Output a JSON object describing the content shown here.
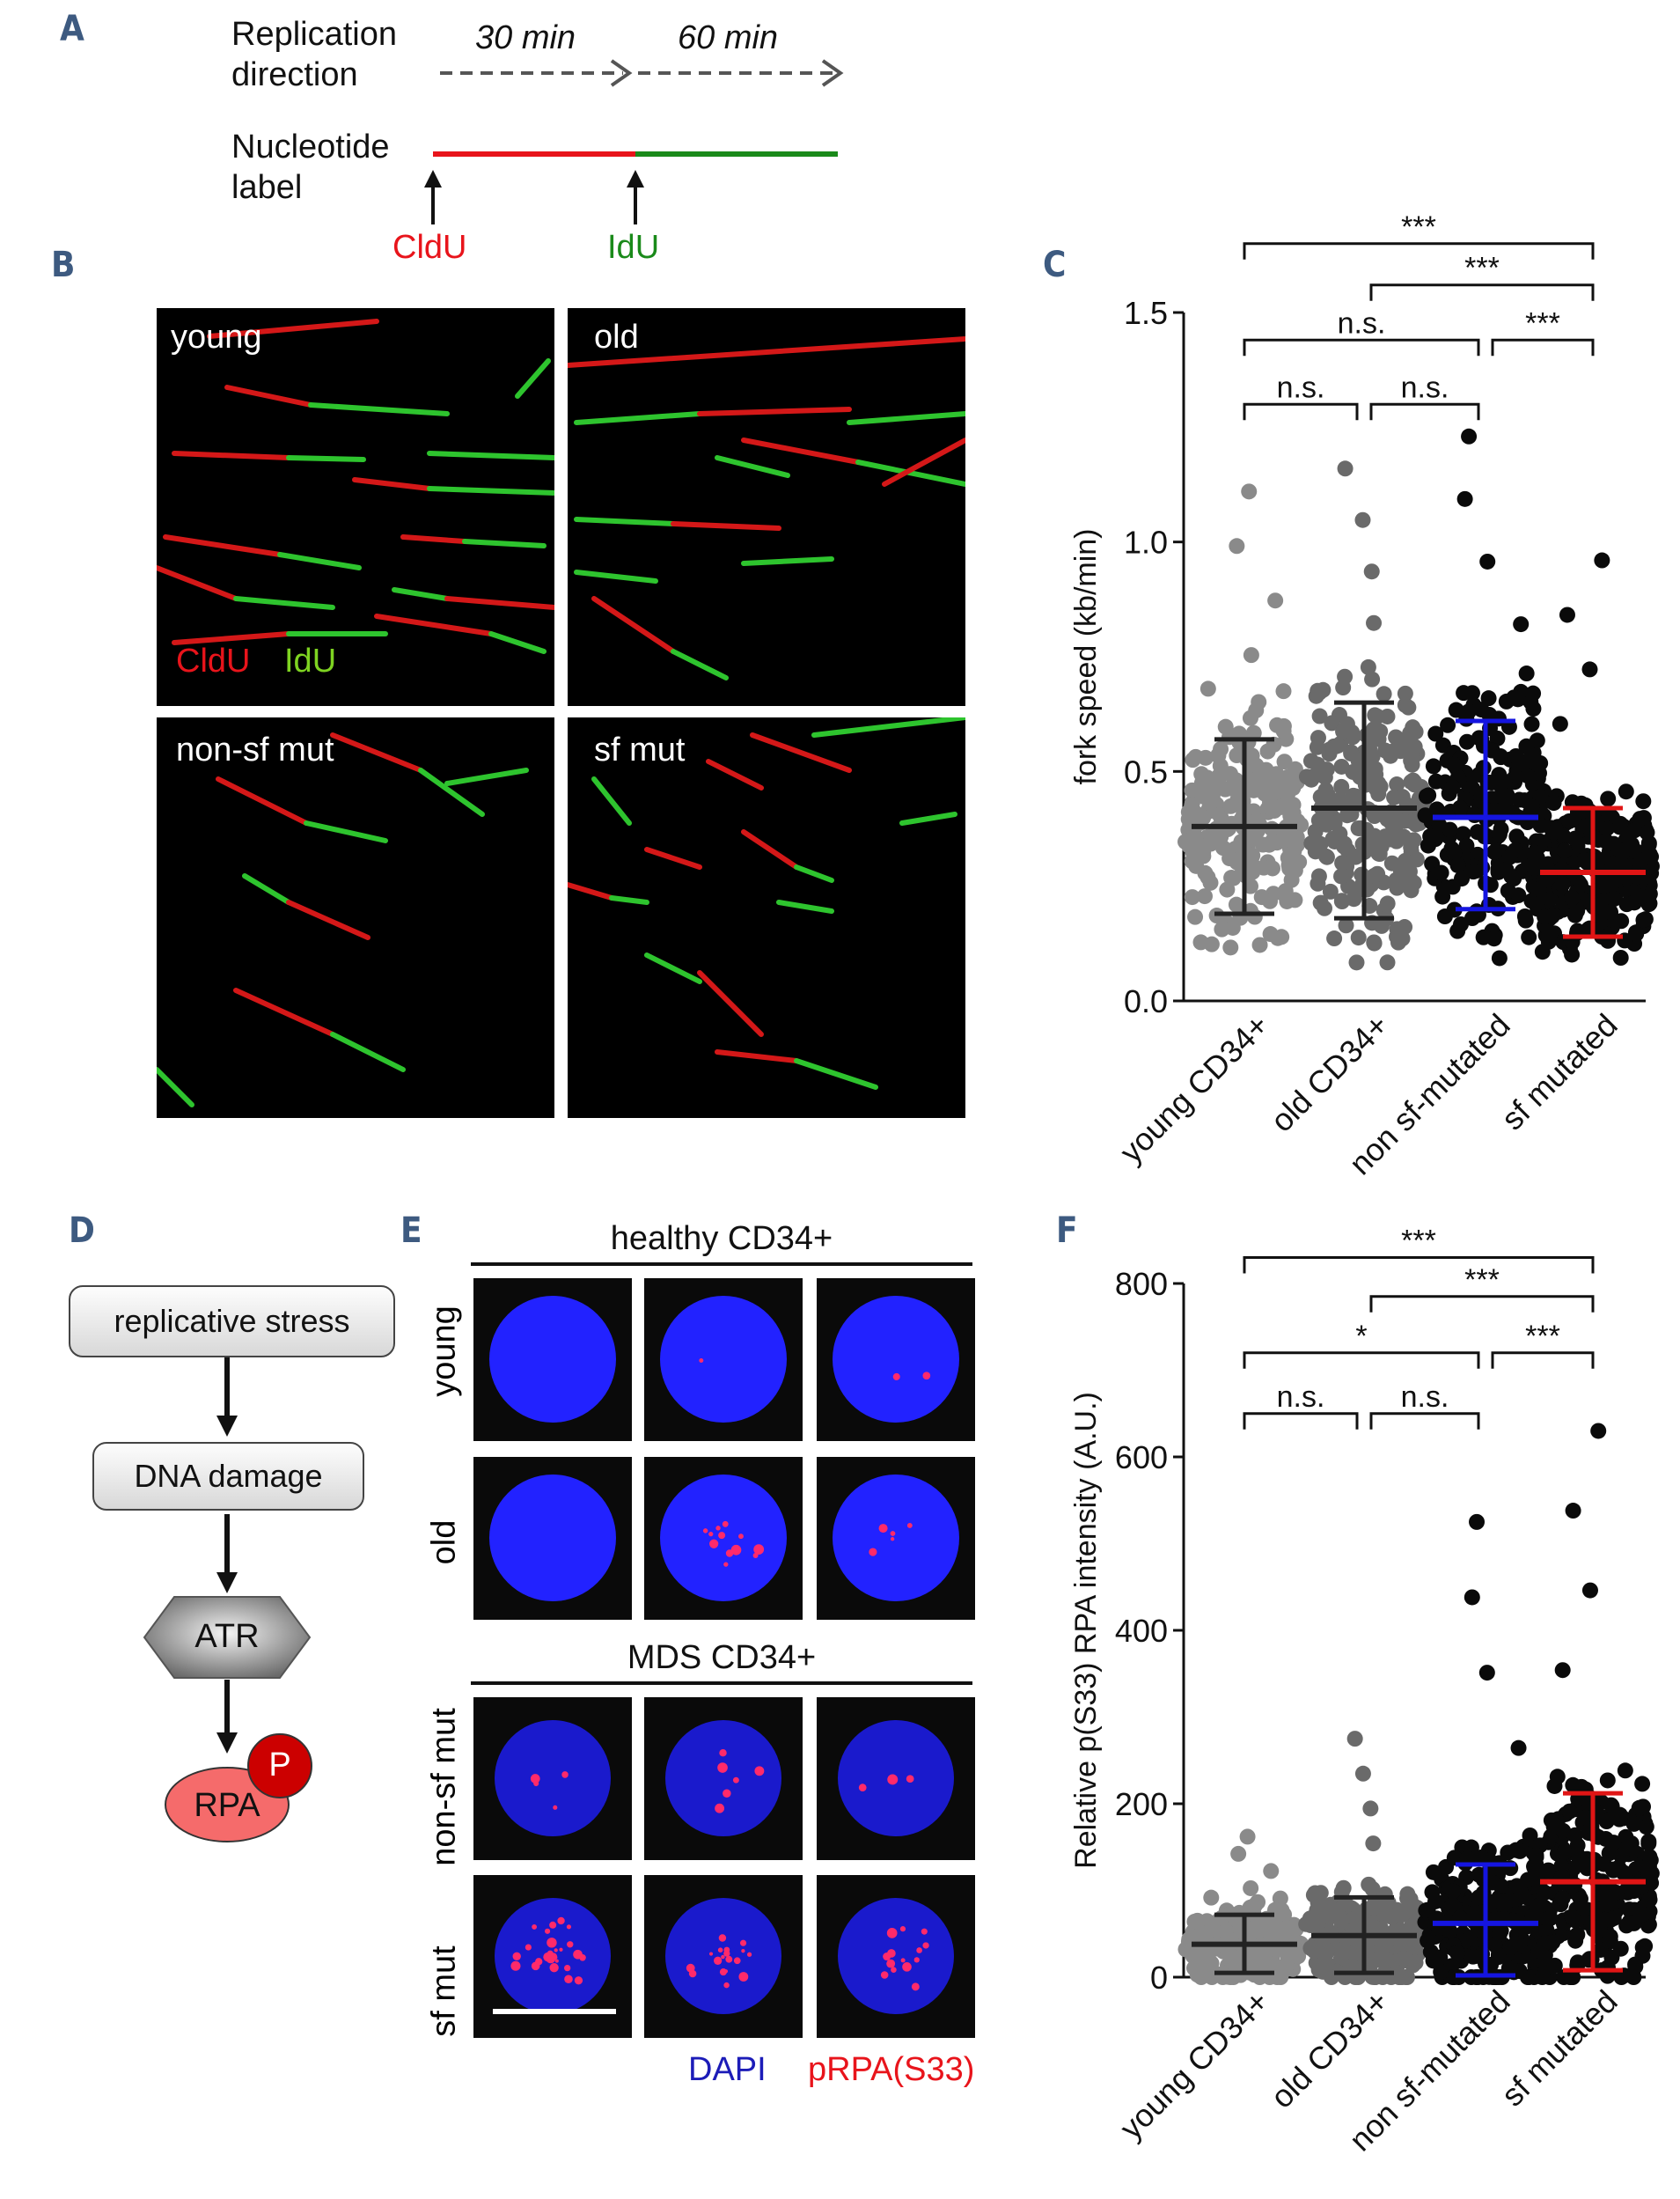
{
  "panels": {
    "a": "A",
    "b": "B",
    "c": "C",
    "d": "D",
    "e": "E",
    "f": "F"
  },
  "panel_a": {
    "replication": "Replication",
    "direction": "direction",
    "t30": "30 min",
    "t60": "60 min",
    "nucleotide": "Nucleotide",
    "label": "label",
    "cldu": "CldU",
    "idu": "IdU",
    "colors": {
      "red": "#e8141b",
      "green": "#1a8a1a"
    }
  },
  "panel_b": {
    "young": "young",
    "old": "old",
    "non_sf": "non-sf mut",
    "sf": "sf mut",
    "legend_cldu": "CldU",
    "legend_idu": "IdU"
  },
  "panel_d": {
    "stress": "replicative stress",
    "damage": "DNA damage",
    "atr": "ATR",
    "rpa": "RPA",
    "p": "P"
  },
  "panel_e": {
    "healthy": "healthy CD34+",
    "mds": "MDS CD34+",
    "row_young": "young",
    "row_old": "old",
    "row_nonsf": "non-sf mut",
    "row_sf": "sf mut",
    "dapi": "DAPI",
    "prpa": "pRPA(S33)"
  },
  "chart_data": [
    {
      "type": "scatter",
      "title": "",
      "ylabel": "fork speed (kb/min)",
      "ylim": [
        0,
        1.5
      ],
      "yticks": [
        "0.0",
        "0.5",
        "1.0",
        "1.5"
      ],
      "categories": [
        "young CD34+",
        "old CD34+",
        "non sf-mutated",
        "sf mutated"
      ],
      "summary": [
        {
          "mean": 0.38,
          "sd_low": 0.19,
          "sd_high": 0.57,
          "max": 1.11,
          "color": "#222222"
        },
        {
          "mean": 0.42,
          "sd_low": 0.18,
          "sd_high": 0.65,
          "max": 1.16,
          "color": "#222222"
        },
        {
          "mean": 0.4,
          "sd_low": 0.2,
          "sd_high": 0.61,
          "max": 1.23,
          "color": "#1515e0"
        },
        {
          "mean": 0.28,
          "sd_low": 0.14,
          "sd_high": 0.42,
          "max": 0.96,
          "color": "#e01515"
        }
      ],
      "dot_colors": [
        "#8a8a8a",
        "#6a6a6a",
        "#0a0a0a",
        "#0a0a0a"
      ],
      "comparisons": [
        {
          "from": 0,
          "to": 1,
          "label": "n.s.",
          "level": 1.3
        },
        {
          "from": 1,
          "to": 2,
          "label": "n.s.",
          "level": 1.3
        },
        {
          "from": 0,
          "to": 2,
          "label": "n.s.",
          "level": 1.44
        },
        {
          "from": 2,
          "to": 3,
          "label": "***",
          "level": 1.44
        },
        {
          "from": 1,
          "to": 3,
          "label": "***",
          "level": 1.56
        },
        {
          "from": 0,
          "to": 3,
          "label": "***",
          "level": 1.65
        }
      ]
    },
    {
      "type": "scatter",
      "title": "",
      "ylabel": "Relative p(S33) RPA intensity (A.U.)",
      "ylim": [
        0,
        800
      ],
      "yticks": [
        "0",
        "200",
        "400",
        "600",
        "800"
      ],
      "categories": [
        "young CD34+",
        "old CD34+",
        "non sf-mutated",
        "sf mutated"
      ],
      "summary": [
        {
          "mean": 38,
          "sd_low": 5,
          "sd_high": 72,
          "max": 162,
          "color": "#222222"
        },
        {
          "mean": 48,
          "sd_low": 5,
          "sd_high": 92,
          "max": 275,
          "color": "#222222"
        },
        {
          "mean": 62,
          "sd_low": 2,
          "sd_high": 130,
          "max": 525,
          "color": "#1515e0"
        },
        {
          "mean": 110,
          "sd_low": 8,
          "sd_high": 212,
          "max": 630,
          "color": "#e01515"
        }
      ],
      "dot_colors": [
        "#8a8a8a",
        "#6a6a6a",
        "#0a0a0a",
        "#0a0a0a"
      ],
      "comparisons": [
        {
          "from": 0,
          "to": 1,
          "label": "n.s.",
          "level": 650
        },
        {
          "from": 1,
          "to": 2,
          "label": "n.s.",
          "level": 650
        },
        {
          "from": 0,
          "to": 2,
          "label": "*",
          "level": 720
        },
        {
          "from": 2,
          "to": 3,
          "label": "***",
          "level": 720
        },
        {
          "from": 1,
          "to": 3,
          "label": "***",
          "level": 785
        },
        {
          "from": 0,
          "to": 3,
          "label": "***",
          "level": 830
        }
      ]
    }
  ]
}
